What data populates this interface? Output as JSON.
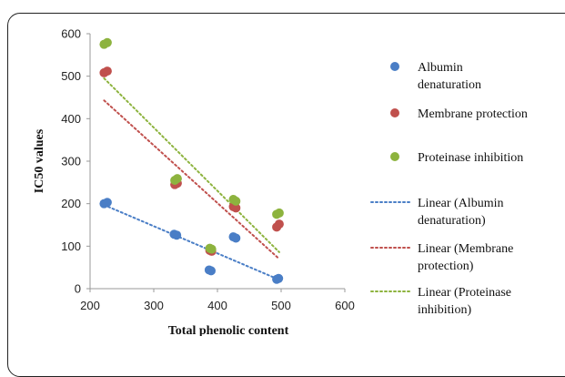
{
  "chart_data": {
    "type": "scatter",
    "title": "",
    "xlabel": "Total phenolic content",
    "ylabel": "IC50 values",
    "xlim": [
      200,
      600
    ],
    "ylim": [
      0,
      600
    ],
    "xticks": [
      "200",
      "300",
      "400",
      "500",
      "600"
    ],
    "yticks": [
      "0",
      "100",
      "200",
      "300",
      "400",
      "500",
      "600"
    ],
    "grid": false,
    "legend_position": "right",
    "series": [
      {
        "name": "Albumin denaturation",
        "name_lines": [
          "Albumin",
          "denaturation"
        ],
        "color": "#4a7ec6",
        "marker": "circle",
        "points": [
          [
            222,
            200
          ],
          [
            227,
            203
          ],
          [
            332,
            128
          ],
          [
            336,
            126
          ],
          [
            387,
            44
          ],
          [
            390,
            42
          ],
          [
            425,
            122
          ],
          [
            429,
            119
          ],
          [
            493,
            22
          ],
          [
            496,
            24
          ]
        ]
      },
      {
        "name": "Membrane protection",
        "name_lines": [
          "Membrane protection"
        ],
        "color": "#c0504d",
        "marker": "circle",
        "points": [
          [
            222,
            508
          ],
          [
            227,
            512
          ],
          [
            333,
            245
          ],
          [
            337,
            248
          ],
          [
            388,
            90
          ],
          [
            391,
            88
          ],
          [
            425,
            193
          ],
          [
            429,
            190
          ],
          [
            493,
            145
          ],
          [
            497,
            152
          ]
        ]
      },
      {
        "name": "Proteinase inhibition",
        "name_lines": [
          "Proteinase inhibition"
        ],
        "color": "#8db33e",
        "marker": "circle",
        "points": [
          [
            222,
            575
          ],
          [
            227,
            579
          ],
          [
            333,
            255
          ],
          [
            337,
            259
          ],
          [
            388,
            95
          ],
          [
            391,
            93
          ],
          [
            425,
            210
          ],
          [
            429,
            206
          ],
          [
            493,
            175
          ],
          [
            497,
            178
          ]
        ]
      }
    ],
    "trendlines": [
      {
        "name": "Linear (Albumin denaturation)",
        "name_lines": [
          "Linear (Albumin",
          "denaturation)"
        ],
        "color": "#4a7ec6",
        "style": "dotted",
        "from": [
          222,
          197
        ],
        "to": [
          497,
          21
        ]
      },
      {
        "name": "Linear (Membrane protection)",
        "name_lines": [
          "Linear (Membrane",
          "protection)"
        ],
        "color": "#c0504d",
        "style": "dotted",
        "from": [
          222,
          443
        ],
        "to": [
          497,
          70
        ]
      },
      {
        "name": "Linear (Proteinase inhibition)",
        "name_lines": [
          "Linear (Proteinase",
          "inhibition)"
        ],
        "color": "#8db33e",
        "style": "dotted",
        "from": [
          222,
          495
        ],
        "to": [
          497,
          86
        ]
      }
    ]
  }
}
